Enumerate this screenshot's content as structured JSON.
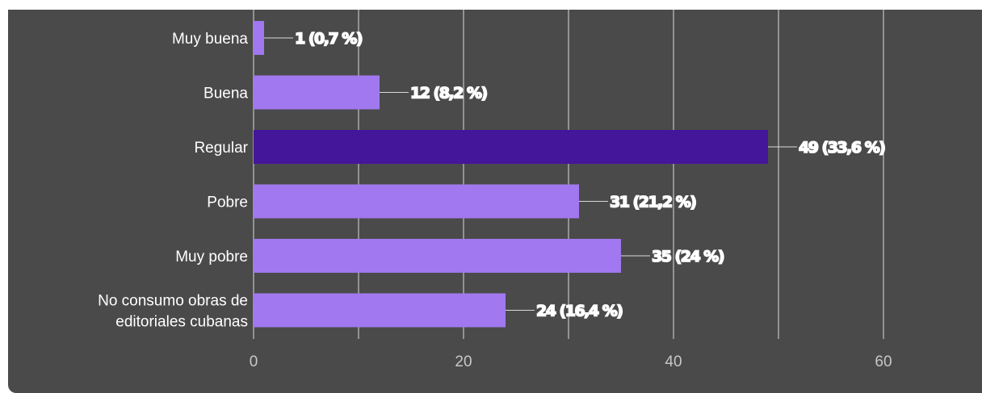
{
  "colors": {
    "background": "#4a4a4a",
    "bar": "#a178f0",
    "bar_highlight": "#44169a",
    "grid": "#d9d9d9",
    "text": "#ffffff",
    "tick_text": "#c8c8c8"
  },
  "chart_data": {
    "type": "bar",
    "orientation": "horizontal",
    "categories": [
      [
        "Muy buena"
      ],
      [
        "Buena"
      ],
      [
        "Regular"
      ],
      [
        "Pobre"
      ],
      [
        "Muy pobre"
      ],
      [
        "No consumo obras de",
        "editoriales cubanas"
      ]
    ],
    "values": [
      1,
      12,
      49,
      31,
      35,
      24
    ],
    "data_labels": [
      "1 (0,7 %)",
      "12 (8,2 %)",
      "49 (33,6 %)",
      "31 (21,2 %)",
      "35 (24 %)",
      "24 (16,4 %)"
    ],
    "highlight_index": 2,
    "xlim": [
      0,
      68
    ],
    "xticks": [
      "0",
      "20",
      "40",
      "60"
    ],
    "xtick_values": [
      0,
      20,
      40,
      60
    ],
    "grid": true,
    "legend": "none"
  }
}
